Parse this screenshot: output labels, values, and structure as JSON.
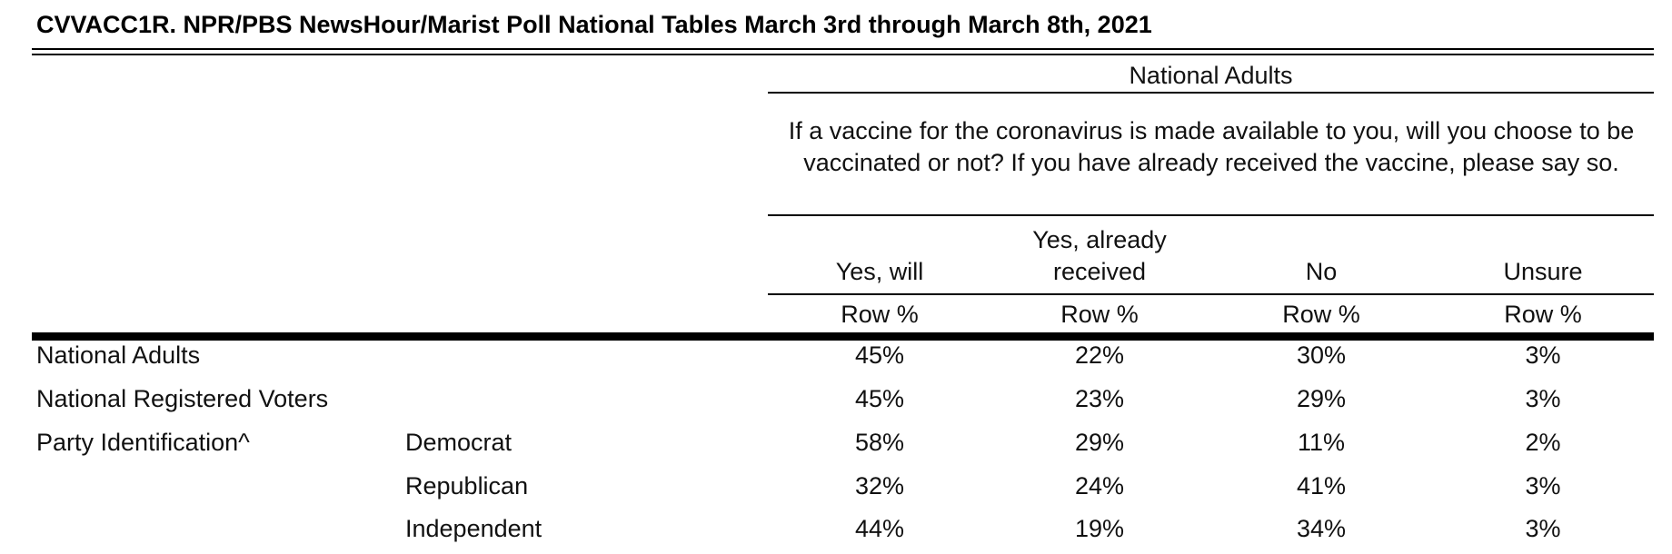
{
  "title": "CVVACC1R. NPR/PBS NewsHour/Marist Poll National Tables March 3rd through March 8th, 2021",
  "banner": "National Adults",
  "question": "If a vaccine for the coronavirus is made available to you, will you choose to be vaccinated or not? If you have already received the vaccine, please say so.",
  "columns": [
    {
      "label": "Yes, will",
      "sub": "Row %"
    },
    {
      "label": "Yes, already received",
      "sub": "Row %"
    },
    {
      "label": "No",
      "sub": "Row %"
    },
    {
      "label": "Unsure",
      "sub": "Row %"
    }
  ],
  "rows": [
    {
      "group": "National Adults",
      "sub": "",
      "values": [
        "45%",
        "22%",
        "30%",
        "3%"
      ]
    },
    {
      "group": "National Registered Voters",
      "sub": "",
      "values": [
        "45%",
        "23%",
        "29%",
        "3%"
      ]
    },
    {
      "group": "Party Identification^",
      "sub": "Democrat",
      "values": [
        "58%",
        "29%",
        "11%",
        "2%"
      ]
    },
    {
      "group": "",
      "sub": "Republican",
      "values": [
        "32%",
        "24%",
        "41%",
        "3%"
      ]
    },
    {
      "group": "",
      "sub": "Independent",
      "values": [
        "44%",
        "19%",
        "34%",
        "3%"
      ]
    }
  ]
}
